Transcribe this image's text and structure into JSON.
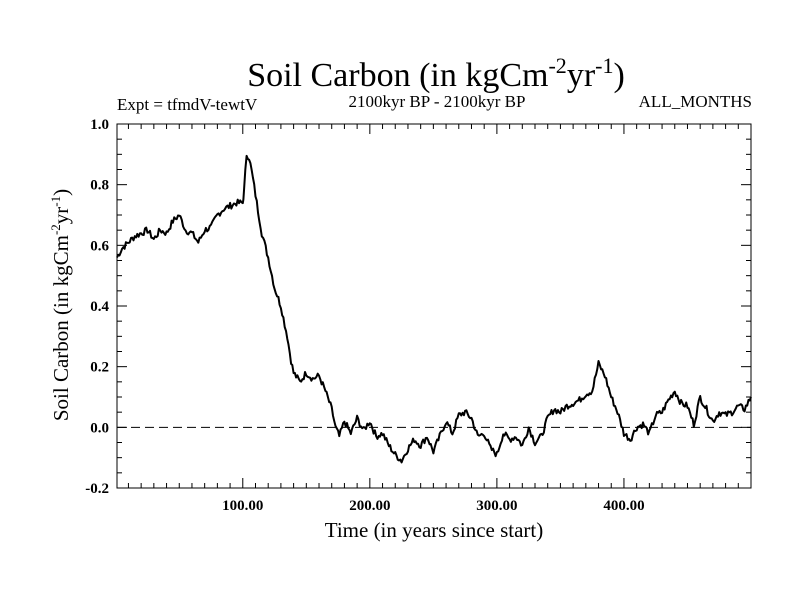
{
  "chart_data": {
    "type": "line",
    "title": {
      "main": "Soil Carbon (in kgCm",
      "sup1": "-2",
      "mid": "yr",
      "sup2": "-1",
      "end": ")"
    },
    "experiment": "Expt = tfmdV-tewtV",
    "period": "2100kyr BP - 2100kyr BP",
    "months": "ALL_MONTHS",
    "xlabel": "Time (in years since start)",
    "ylabel": {
      "main": "Soil Carbon (in kgCm",
      "sup1": "-2",
      "mid": "yr",
      "sup2": "-1",
      "end": ")"
    },
    "xlim": [
      1,
      500
    ],
    "ylim": [
      -0.2,
      1.0
    ],
    "x_ticks": [
      100,
      200,
      300,
      400
    ],
    "x_tick_labels": [
      "100.00",
      "200.00",
      "300.00",
      "400.00"
    ],
    "y_ticks": [
      -0.2,
      0.0,
      0.2,
      0.4,
      0.6,
      0.8,
      1.0
    ],
    "y_tick_labels": [
      "-0.2",
      "0.0",
      "0.2",
      "0.4",
      "0.6",
      "0.8",
      "1.0"
    ],
    "reference_line": 0.0,
    "series": [
      {
        "name": "Soil Carbon",
        "color": "#000000",
        "x": [
          1,
          5,
          10,
          15,
          20,
          25,
          30,
          35,
          40,
          45,
          50,
          55,
          60,
          65,
          70,
          75,
          80,
          85,
          90,
          95,
          100,
          101,
          103,
          105,
          108,
          111,
          115,
          120,
          125,
          130,
          135,
          138,
          140,
          145,
          150,
          155,
          160,
          165,
          170,
          173,
          176,
          180,
          185,
          190,
          195,
          200,
          205,
          210,
          215,
          220,
          225,
          230,
          235,
          240,
          245,
          250,
          255,
          260,
          265,
          270,
          275,
          280,
          285,
          290,
          295,
          300,
          305,
          310,
          315,
          320,
          325,
          330,
          335,
          340,
          345,
          350,
          355,
          360,
          365,
          370,
          375,
          380,
          385,
          390,
          395,
          400,
          405,
          410,
          415,
          420,
          425,
          430,
          435,
          440,
          445,
          450,
          455,
          460,
          465,
          470,
          475,
          480,
          485,
          490,
          495,
          500
        ],
        "values": [
          0.56,
          0.59,
          0.61,
          0.63,
          0.64,
          0.65,
          0.62,
          0.65,
          0.64,
          0.68,
          0.7,
          0.65,
          0.64,
          0.61,
          0.65,
          0.66,
          0.7,
          0.72,
          0.73,
          0.74,
          0.74,
          0.78,
          0.9,
          0.89,
          0.82,
          0.74,
          0.64,
          0.56,
          0.46,
          0.4,
          0.3,
          0.22,
          0.18,
          0.15,
          0.18,
          0.16,
          0.17,
          0.12,
          0.06,
          0.0,
          -0.03,
          0.02,
          -0.02,
          0.03,
          -0.01,
          0.02,
          -0.03,
          -0.02,
          -0.06,
          -0.09,
          -0.11,
          -0.07,
          -0.04,
          -0.06,
          -0.03,
          -0.08,
          -0.03,
          0.02,
          -0.02,
          0.04,
          0.05,
          0.03,
          -0.03,
          -0.02,
          -0.07,
          -0.09,
          -0.02,
          -0.04,
          -0.03,
          -0.06,
          0.0,
          -0.05,
          -0.03,
          0.03,
          0.06,
          0.05,
          0.07,
          0.08,
          0.09,
          0.11,
          0.12,
          0.21,
          0.17,
          0.1,
          0.05,
          -0.02,
          -0.04,
          0.0,
          0.01,
          -0.02,
          0.04,
          0.05,
          0.09,
          0.12,
          0.08,
          0.07,
          0.01,
          0.1,
          0.06,
          0.02,
          0.05,
          0.04,
          0.05,
          0.07,
          0.06,
          0.1
        ]
      }
    ]
  }
}
